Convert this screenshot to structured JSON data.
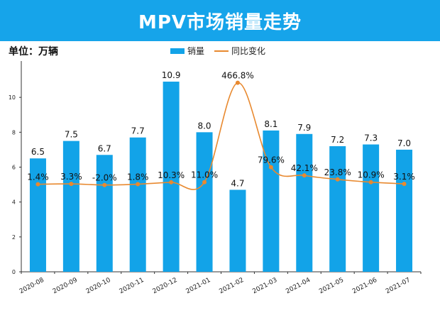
{
  "header": {
    "title": "MPV市场销量走势"
  },
  "unit_label": "单位：万辆",
  "colors": {
    "banner": "#16a4ea",
    "bar": "#12a3e8",
    "line": "#e8892f"
  },
  "chart_data": {
    "type": "bar",
    "title": "MPV市场销量走势",
    "ylabel": "单位：万辆",
    "xlabel": "",
    "ylim": [
      0,
      12
    ],
    "yticks": [
      0,
      2,
      4,
      6,
      8,
      10
    ],
    "categories": [
      "2020-08",
      "2020-09",
      "2020-10",
      "2020-11",
      "2020-12",
      "2021-01",
      "2021-02",
      "2021-03",
      "2021-04",
      "2021-05",
      "2021-06",
      "2021-07"
    ],
    "series": [
      {
        "name": "销量",
        "type": "bar",
        "values": [
          6.5,
          7.5,
          6.7,
          7.7,
          10.9,
          8.0,
          4.7,
          8.1,
          7.9,
          7.2,
          7.3,
          7.0
        ],
        "labels": [
          "6.5",
          "7.5",
          "6.7",
          "7.7",
          "10.9",
          "8.0",
          "4.7",
          "8.1",
          "7.9",
          "7.2",
          "7.3",
          "7.0"
        ]
      },
      {
        "name": "同比变化",
        "type": "line",
        "secondary_axis": true,
        "values": [
          1.4,
          3.3,
          -2.0,
          1.8,
          10.3,
          11.0,
          466.8,
          79.6,
          42.1,
          23.8,
          10.9,
          3.1
        ],
        "labels": [
          "1.4%",
          "3.3%",
          "-2.0%",
          "1.8%",
          "10.3%",
          "11.0%",
          "466.8%",
          "79.6%",
          "42.1%",
          "23.8%",
          "10.9%",
          "3.1%"
        ]
      }
    ],
    "legend": {
      "position": "top-center",
      "items": [
        "销量",
        "同比变化"
      ]
    }
  }
}
